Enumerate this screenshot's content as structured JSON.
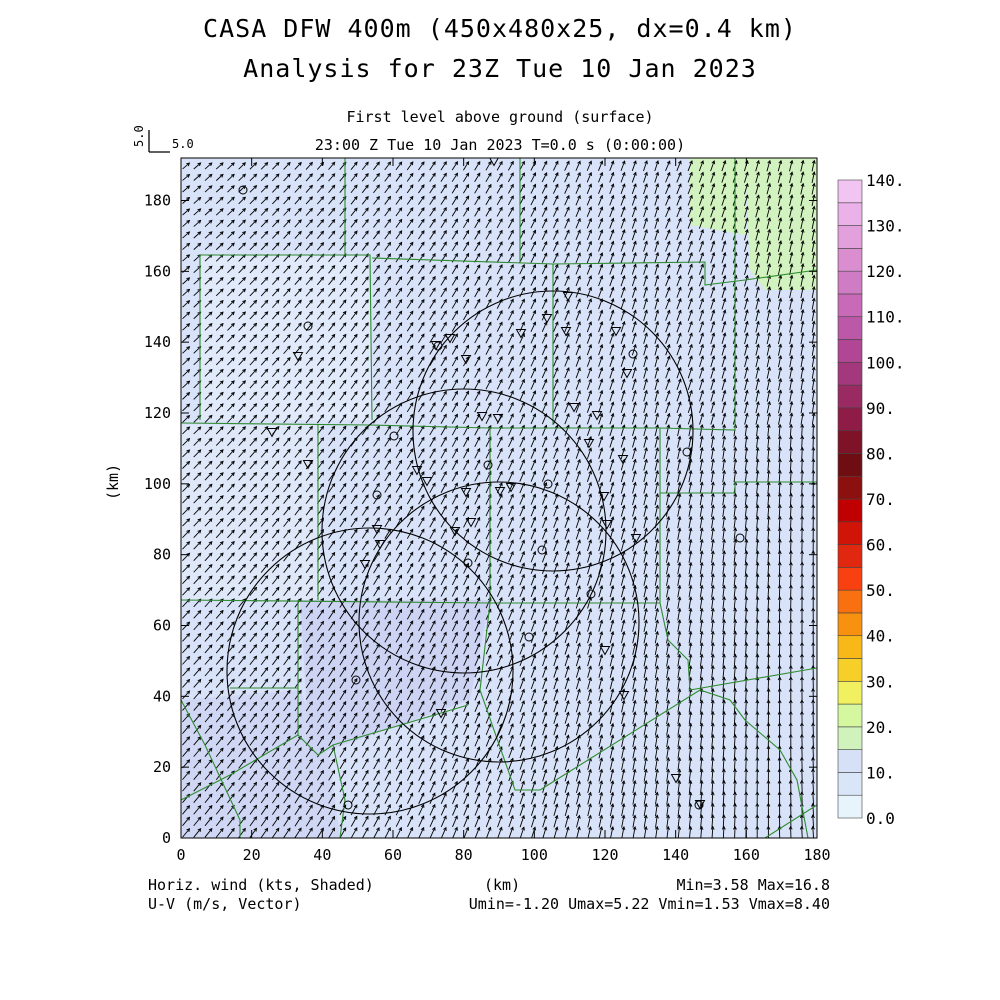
{
  "title_line1": "CASA DFW 400m (450x480x25, dx=0.4 km)",
  "title_line2": "Analysis for 23Z Tue 10 Jan 2023",
  "subtitle_line1": "First level above ground (surface)",
  "subtitle_line2": "23:00 Z Tue 10 Jan 2023   T=0.0 s (0:00:00)",
  "reference_vector": {
    "rotated_label": "5.0",
    "label": "5.0"
  },
  "footer": {
    "left_line1": "Horiz. wind (kts, Shaded)",
    "left_line2": "U-V (m/s, Vector)",
    "center": "(km)",
    "right_line1": "Min=3.58 Max=16.8",
    "right_line2": "Umin=-1.20 Umax=5.22 Vmin=1.53 Vmax=8.40"
  },
  "axes": {
    "ylabel": "(km)",
    "xlabel": "(km)",
    "xticks": [
      "0",
      "20",
      "40",
      "60",
      "80",
      "100",
      "120",
      "140",
      "160",
      "180"
    ],
    "yticks": [
      "0",
      "20",
      "40",
      "60",
      "80",
      "100",
      "120",
      "140",
      "160",
      "180"
    ],
    "xlim": [
      0,
      180
    ],
    "ylim": [
      0,
      192
    ]
  },
  "colorbar": {
    "labels": [
      "0.0",
      "10.",
      "20.",
      "30.",
      "40.",
      "50.",
      "60.",
      "70.",
      "80.",
      "90.",
      "100.",
      "110.",
      "120.",
      "130.",
      "140."
    ],
    "colors": [
      "#e8f4fc",
      "#d8e6f8",
      "#d6e0f6",
      "#d0f2bc",
      "#d4f7a0",
      "#f0f060",
      "#f6d028",
      "#f8b818",
      "#f89010",
      "#f87010",
      "#f84010",
      "#e02810",
      "#d01408",
      "#c00000",
      "#8c1010",
      "#6e0e12",
      "#7e1226",
      "#8e1c46",
      "#9a2a62",
      "#a4387c",
      "#b04694",
      "#bc58a8",
      "#c86ab8",
      "#d07cc4",
      "#da8ed0",
      "#e2a0dc",
      "#eab2e8",
      "#f2c4f2"
    ]
  },
  "colors": {
    "map_background": "#d8e2f8",
    "county_lines": "#2e8b2e",
    "vectors": "#000000"
  }
}
